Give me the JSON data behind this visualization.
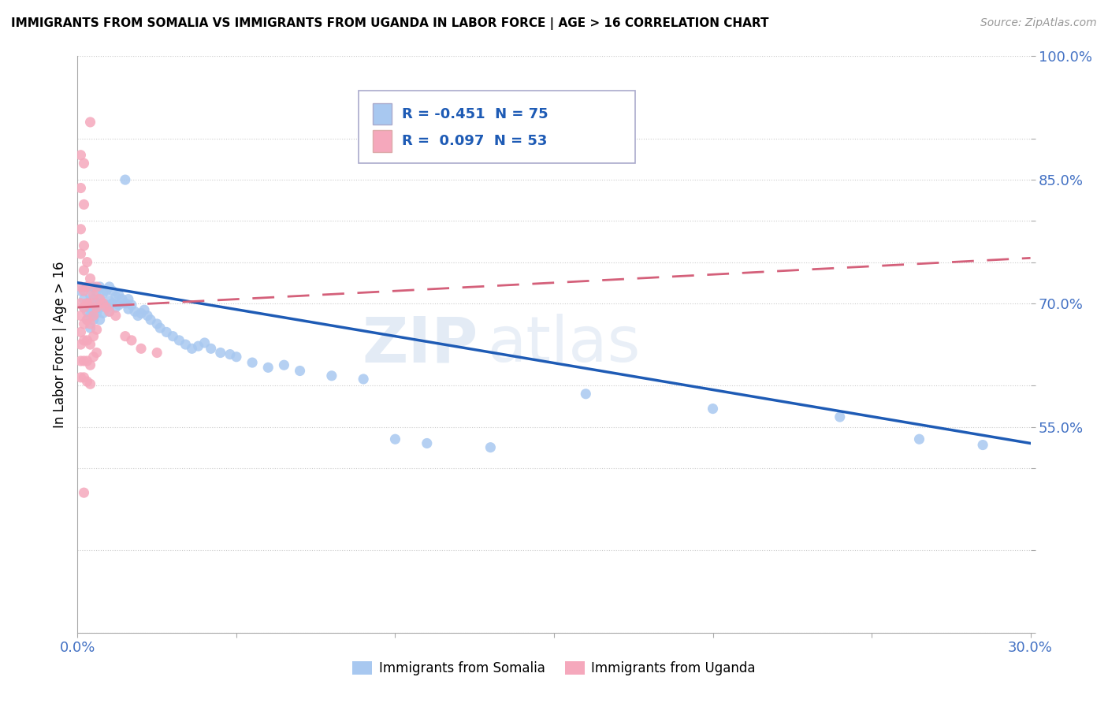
{
  "title": "IMMIGRANTS FROM SOMALIA VS IMMIGRANTS FROM UGANDA IN LABOR FORCE | AGE > 16 CORRELATION CHART",
  "source": "Source: ZipAtlas.com",
  "ylabel": "In Labor Force | Age > 16",
  "xlim": [
    0.0,
    0.3
  ],
  "ylim": [
    0.3,
    1.0
  ],
  "somalia_color": "#A8C8F0",
  "uganda_color": "#F5A8BC",
  "somalia_R": -0.451,
  "somalia_N": 75,
  "uganda_R": 0.097,
  "uganda_N": 53,
  "somalia_line_color": "#1E5BB5",
  "uganda_line_color": "#D4607A",
  "watermark_part1": "ZIP",
  "watermark_part2": "atlas",
  "somalia_dots": [
    [
      0.001,
      0.715
    ],
    [
      0.002,
      0.705
    ],
    [
      0.002,
      0.695
    ],
    [
      0.003,
      0.72
    ],
    [
      0.003,
      0.7
    ],
    [
      0.003,
      0.69
    ],
    [
      0.003,
      0.68
    ],
    [
      0.004,
      0.71
    ],
    [
      0.004,
      0.695
    ],
    [
      0.004,
      0.685
    ],
    [
      0.004,
      0.67
    ],
    [
      0.005,
      0.72
    ],
    [
      0.005,
      0.705
    ],
    [
      0.005,
      0.69
    ],
    [
      0.005,
      0.68
    ],
    [
      0.006,
      0.715
    ],
    [
      0.006,
      0.7
    ],
    [
      0.006,
      0.688
    ],
    [
      0.007,
      0.72
    ],
    [
      0.007,
      0.705
    ],
    [
      0.007,
      0.695
    ],
    [
      0.007,
      0.68
    ],
    [
      0.008,
      0.712
    ],
    [
      0.008,
      0.7
    ],
    [
      0.008,
      0.688
    ],
    [
      0.009,
      0.715
    ],
    [
      0.009,
      0.698
    ],
    [
      0.01,
      0.72
    ],
    [
      0.01,
      0.703
    ],
    [
      0.01,
      0.69
    ],
    [
      0.011,
      0.715
    ],
    [
      0.011,
      0.7
    ],
    [
      0.012,
      0.708
    ],
    [
      0.012,
      0.695
    ],
    [
      0.013,
      0.71
    ],
    [
      0.013,
      0.698
    ],
    [
      0.014,
      0.705
    ],
    [
      0.015,
      0.85
    ],
    [
      0.015,
      0.7
    ],
    [
      0.016,
      0.705
    ],
    [
      0.016,
      0.693
    ],
    [
      0.017,
      0.698
    ],
    [
      0.018,
      0.69
    ],
    [
      0.019,
      0.685
    ],
    [
      0.02,
      0.688
    ],
    [
      0.021,
      0.692
    ],
    [
      0.022,
      0.685
    ],
    [
      0.023,
      0.68
    ],
    [
      0.025,
      0.675
    ],
    [
      0.026,
      0.67
    ],
    [
      0.028,
      0.665
    ],
    [
      0.03,
      0.66
    ],
    [
      0.032,
      0.655
    ],
    [
      0.034,
      0.65
    ],
    [
      0.036,
      0.645
    ],
    [
      0.038,
      0.648
    ],
    [
      0.04,
      0.652
    ],
    [
      0.042,
      0.645
    ],
    [
      0.045,
      0.64
    ],
    [
      0.048,
      0.638
    ],
    [
      0.05,
      0.635
    ],
    [
      0.055,
      0.628
    ],
    [
      0.06,
      0.622
    ],
    [
      0.065,
      0.625
    ],
    [
      0.07,
      0.618
    ],
    [
      0.08,
      0.612
    ],
    [
      0.09,
      0.608
    ],
    [
      0.1,
      0.535
    ],
    [
      0.11,
      0.53
    ],
    [
      0.13,
      0.525
    ],
    [
      0.16,
      0.59
    ],
    [
      0.2,
      0.572
    ],
    [
      0.24,
      0.562
    ],
    [
      0.265,
      0.535
    ],
    [
      0.285,
      0.528
    ]
  ],
  "uganda_dots": [
    [
      0.001,
      0.88
    ],
    [
      0.001,
      0.84
    ],
    [
      0.001,
      0.79
    ],
    [
      0.001,
      0.76
    ],
    [
      0.001,
      0.72
    ],
    [
      0.001,
      0.7
    ],
    [
      0.001,
      0.685
    ],
    [
      0.001,
      0.665
    ],
    [
      0.001,
      0.65
    ],
    [
      0.001,
      0.63
    ],
    [
      0.001,
      0.61
    ],
    [
      0.002,
      0.87
    ],
    [
      0.002,
      0.82
    ],
    [
      0.002,
      0.77
    ],
    [
      0.002,
      0.74
    ],
    [
      0.002,
      0.715
    ],
    [
      0.002,
      0.695
    ],
    [
      0.002,
      0.675
    ],
    [
      0.002,
      0.655
    ],
    [
      0.002,
      0.63
    ],
    [
      0.002,
      0.61
    ],
    [
      0.002,
      0.47
    ],
    [
      0.003,
      0.75
    ],
    [
      0.003,
      0.72
    ],
    [
      0.003,
      0.7
    ],
    [
      0.003,
      0.68
    ],
    [
      0.003,
      0.655
    ],
    [
      0.003,
      0.63
    ],
    [
      0.003,
      0.605
    ],
    [
      0.004,
      0.92
    ],
    [
      0.004,
      0.73
    ],
    [
      0.004,
      0.7
    ],
    [
      0.004,
      0.675
    ],
    [
      0.004,
      0.65
    ],
    [
      0.004,
      0.625
    ],
    [
      0.004,
      0.602
    ],
    [
      0.005,
      0.71
    ],
    [
      0.005,
      0.685
    ],
    [
      0.005,
      0.66
    ],
    [
      0.005,
      0.635
    ],
    [
      0.006,
      0.72
    ],
    [
      0.006,
      0.695
    ],
    [
      0.006,
      0.668
    ],
    [
      0.006,
      0.64
    ],
    [
      0.007,
      0.705
    ],
    [
      0.008,
      0.7
    ],
    [
      0.009,
      0.695
    ],
    [
      0.01,
      0.69
    ],
    [
      0.012,
      0.685
    ],
    [
      0.015,
      0.66
    ],
    [
      0.017,
      0.655
    ],
    [
      0.02,
      0.645
    ],
    [
      0.025,
      0.64
    ]
  ],
  "somalia_trendline": [
    0.0,
    0.3,
    0.725,
    0.53
  ],
  "uganda_trendline": [
    0.0,
    0.3,
    0.695,
    0.755
  ]
}
